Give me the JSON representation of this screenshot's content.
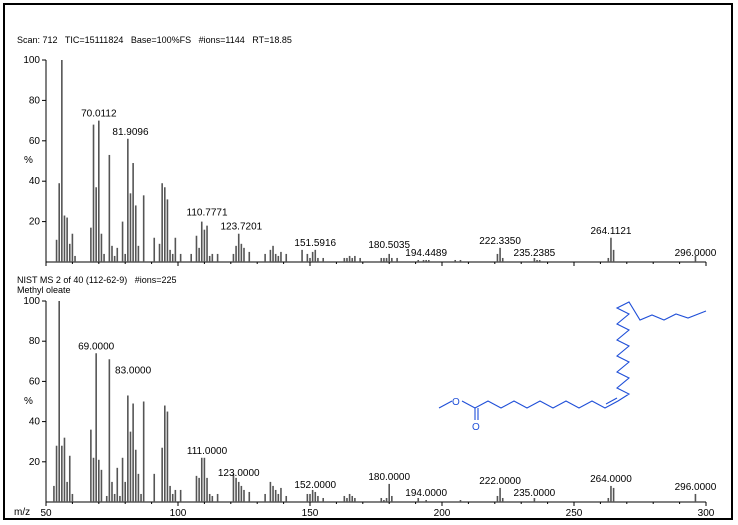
{
  "upper_header": "Scan: 712   TIC=15111824   Base=100%FS   #ions=1144   RT=18.85",
  "lower_header": "NIST MS 2 of 40 (112-62-9)   #ions=225",
  "compound_name": "Methyl oleate",
  "x_axis_prefix": "m/z",
  "y_axis_unit_symbol": "%",
  "structure_carbonyl_O": "O",
  "structure_ester_O": "O",
  "colors": {
    "bars": "#555555",
    "axis": "#000000",
    "structure": "#1f4fd8"
  },
  "chart_data": [
    {
      "type": "bar",
      "title": "Scan: 712 TIC=15111824 Base=100%FS #ions=1144 RT=18.85",
      "xlabel": "",
      "ylabel": "%",
      "xlim": [
        50,
        300
      ],
      "ylim": [
        0,
        100
      ],
      "yticks": [
        20,
        40,
        60,
        80,
        100
      ],
      "x": [
        54,
        55,
        56,
        57,
        58,
        59,
        60,
        61,
        67,
        68,
        69,
        70,
        71,
        72,
        74,
        75,
        76,
        77,
        79,
        80,
        81,
        82,
        83,
        84,
        85,
        87,
        91,
        93,
        94,
        95,
        96,
        97,
        98,
        99,
        101,
        105,
        107,
        108,
        109,
        110,
        111,
        112,
        113,
        115,
        121,
        122,
        123,
        124,
        125,
        127,
        133,
        135,
        136,
        137,
        138,
        139,
        141,
        147,
        149,
        150,
        151,
        152,
        153,
        155,
        163,
        164,
        165,
        166,
        167,
        169,
        177,
        178,
        179,
        180,
        181,
        183,
        191,
        193,
        194,
        195,
        205,
        207,
        221,
        222,
        223,
        235,
        236,
        237,
        263,
        264,
        265,
        296
      ],
      "values": [
        11,
        39,
        100,
        23,
        22,
        9,
        14,
        3,
        17,
        68,
        37,
        70,
        14,
        4,
        53,
        8,
        3,
        7,
        20,
        4,
        61,
        34,
        49,
        28,
        8,
        33,
        12,
        9,
        39,
        37,
        31,
        6,
        4,
        12,
        4,
        4,
        13,
        7,
        20,
        16,
        18,
        3,
        4,
        4,
        4,
        8,
        14,
        9,
        7,
        5,
        4,
        6,
        8,
        4,
        3,
        5,
        4,
        6,
        4,
        2,
        5,
        6,
        2,
        2,
        2,
        2,
        3,
        2,
        3,
        2,
        2,
        2,
        2,
        4,
        2,
        2,
        1,
        1,
        1,
        1,
        1,
        1,
        4,
        7,
        2,
        2,
        1,
        1,
        2,
        12,
        6,
        3
      ],
      "labels": [
        {
          "x": 70,
          "y": 70,
          "text": "70.0112"
        },
        {
          "x": 82,
          "y": 61,
          "text": "81.9096"
        },
        {
          "x": 111,
          "y": 21,
          "text": "110.7771"
        },
        {
          "x": 124,
          "y": 14,
          "text": "123.7201"
        },
        {
          "x": 152,
          "y": 6,
          "text": "151.5916"
        },
        {
          "x": 180,
          "y": 5,
          "text": "180.5035"
        },
        {
          "x": 194,
          "y": 1,
          "text": "194.4489"
        },
        {
          "x": 222,
          "y": 7,
          "text": "222.3350"
        },
        {
          "x": 235,
          "y": 1,
          "text": "235.2385"
        },
        {
          "x": 264,
          "y": 12,
          "text": "264.1121"
        },
        {
          "x": 296,
          "y": 1,
          "text": "296.0000"
        }
      ]
    },
    {
      "type": "bar",
      "title": "NIST MS 2 of 40 (112-62-9) #ions=225 Methyl oleate",
      "xlabel": "m/z",
      "ylabel": "%",
      "xlim": [
        50,
        300
      ],
      "ylim": [
        0,
        100
      ],
      "xticks": [
        50,
        100,
        150,
        200,
        250,
        300
      ],
      "yticks": [
        20,
        40,
        60,
        80,
        100
      ],
      "x": [
        53,
        54,
        55,
        56,
        57,
        58,
        59,
        60,
        67,
        68,
        69,
        70,
        71,
        73,
        74,
        75,
        76,
        77,
        78,
        79,
        80,
        81,
        82,
        83,
        84,
        85,
        86,
        87,
        91,
        94,
        95,
        96,
        97,
        98,
        99,
        101,
        107,
        108,
        109,
        110,
        111,
        112,
        113,
        115,
        121,
        122,
        123,
        124,
        125,
        127,
        133,
        135,
        136,
        137,
        138,
        139,
        141,
        149,
        150,
        151,
        152,
        153,
        155,
        163,
        164,
        165,
        166,
        167,
        177,
        178,
        179,
        180,
        181,
        191,
        194,
        207,
        221,
        222,
        223,
        235,
        263,
        264,
        265,
        296
      ],
      "values": [
        8,
        28,
        100,
        28,
        32,
        10,
        23,
        4,
        36,
        22,
        74,
        21,
        16,
        3,
        71,
        10,
        4,
        17,
        3,
        22,
        10,
        53,
        35,
        49,
        26,
        14,
        4,
        50,
        14,
        27,
        48,
        45,
        8,
        4,
        6,
        6,
        13,
        12,
        22,
        22,
        12,
        4,
        3,
        4,
        14,
        12,
        10,
        8,
        6,
        5,
        4,
        10,
        8,
        6,
        4,
        7,
        3,
        4,
        4,
        6,
        5,
        3,
        2,
        3,
        2,
        4,
        3,
        2,
        2,
        1,
        2,
        9,
        3,
        2,
        1,
        1,
        3,
        7,
        2,
        2,
        2,
        8,
        7,
        4
      ],
      "labels": [
        {
          "x": 69,
          "y": 74,
          "text": "69.0000"
        },
        {
          "x": 83,
          "y": 62,
          "text": "83.0000"
        },
        {
          "x": 111,
          "y": 22,
          "text": "111.0000"
        },
        {
          "x": 123,
          "y": 11,
          "text": "123.0000"
        },
        {
          "x": 152,
          "y": 5,
          "text": "152.0000"
        },
        {
          "x": 180,
          "y": 9,
          "text": "180.0000"
        },
        {
          "x": 194,
          "y": 1,
          "text": "194.0000"
        },
        {
          "x": 222,
          "y": 7,
          "text": "222.0000"
        },
        {
          "x": 235,
          "y": 1,
          "text": "235.0000"
        },
        {
          "x": 264,
          "y": 8,
          "text": "264.0000"
        },
        {
          "x": 296,
          "y": 4,
          "text": "296.0000"
        }
      ]
    }
  ]
}
